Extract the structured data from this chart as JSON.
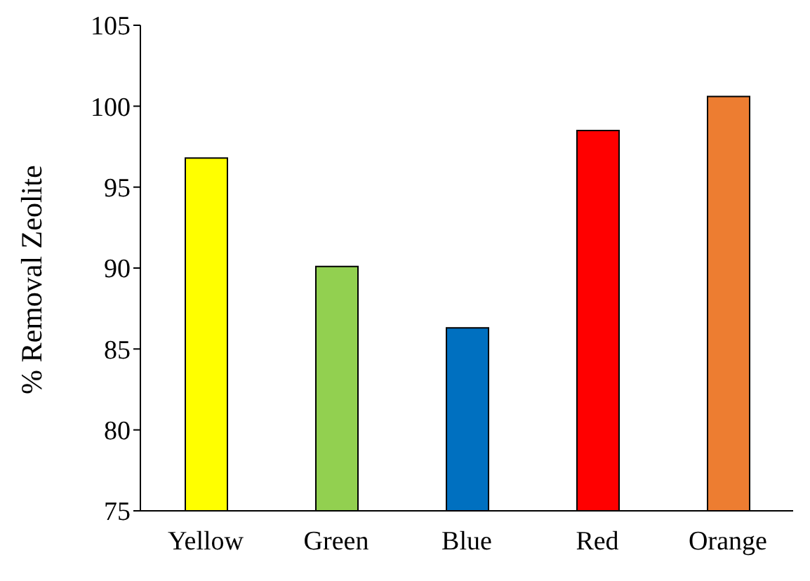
{
  "chart_data": {
    "type": "bar",
    "ylabel": "% Removal Zeolite",
    "categories": [
      "Yellow",
      "Green",
      "Blue",
      "Red",
      "Orange"
    ],
    "values": [
      96.8,
      90.1,
      86.3,
      98.5,
      100.6
    ],
    "colors": [
      "#ffff00",
      "#92d050",
      "#0070c0",
      "#ff0000",
      "#ed7d31"
    ],
    "ylim": [
      75,
      105
    ],
    "yticks": [
      75,
      80,
      85,
      90,
      95,
      100,
      105
    ],
    "grid": false,
    "legend": false
  }
}
